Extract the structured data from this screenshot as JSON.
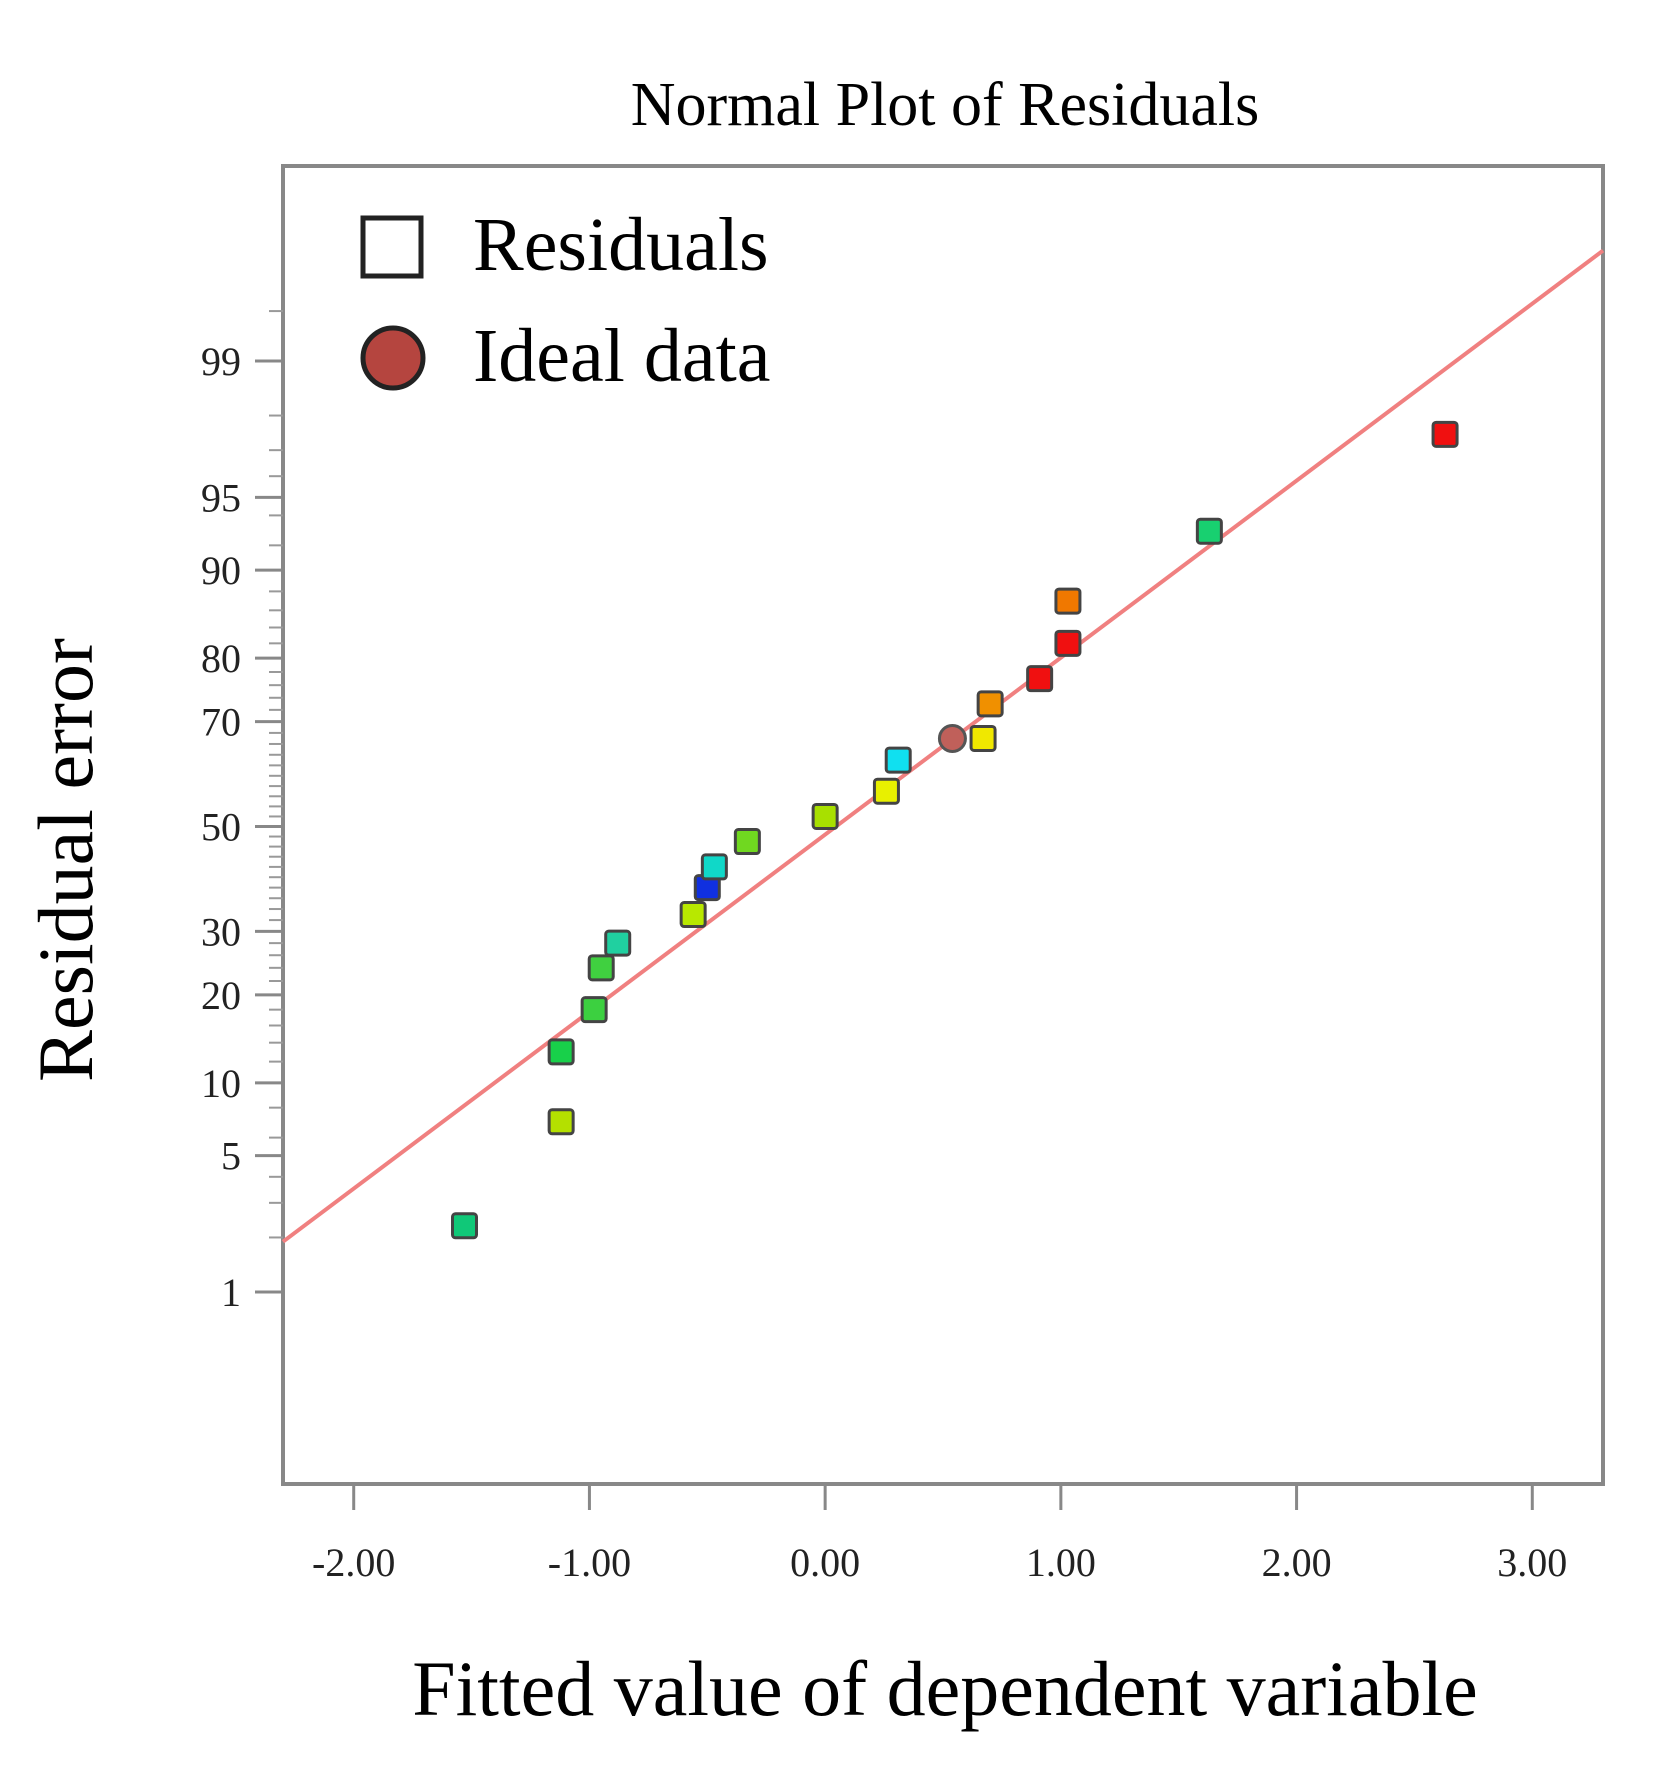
{
  "chart_data": {
    "type": "scatter",
    "title": "Normal Plot of Residuals",
    "xlabel": "Fitted value of dependent variable",
    "ylabel": "Residual error",
    "xlim": [
      -2.3,
      3.3
    ],
    "x_ticks": [
      -2.0,
      -1.0,
      0.0,
      1.0,
      2.0,
      3.0
    ],
    "x_tick_labels": [
      "-2.00",
      "-1.00",
      "0.00",
      "1.00",
      "2.00",
      "3.00"
    ],
    "y_scale": "normal-probability (%)",
    "y_ticks": [
      1,
      5,
      10,
      20,
      30,
      50,
      70,
      80,
      90,
      95,
      99
    ],
    "y_tick_labels": [
      "1",
      "5",
      "10",
      "20",
      "30",
      "50",
      "70",
      "80",
      "90",
      "95",
      "99"
    ],
    "legend": {
      "placement": "top-left",
      "entries": [
        {
          "label": "Residuals",
          "marker": "square-open"
        },
        {
          "label": "Ideal data",
          "marker": "circle",
          "color": "#b5453f"
        }
      ]
    },
    "reference_line": {
      "color": "#f08080",
      "from": {
        "x": -2.3,
        "y_percent": 1.9
      },
      "to": {
        "x": 3.3,
        "y_percent": 99.8
      }
    },
    "series": [
      {
        "name": "Residuals",
        "points": [
          {
            "x": -1.53,
            "y": 2.3,
            "color": "#10c878"
          },
          {
            "x": -1.12,
            "y": 7,
            "color": "#b4e000"
          },
          {
            "x": -1.12,
            "y": 13,
            "color": "#18d04a"
          },
          {
            "x": -0.98,
            "y": 18,
            "color": "#3cd040"
          },
          {
            "x": -0.95,
            "y": 24,
            "color": "#40d040"
          },
          {
            "x": -0.88,
            "y": 28,
            "color": "#20d0a0"
          },
          {
            "x": -0.56,
            "y": 33,
            "color": "#b8e800"
          },
          {
            "x": -0.5,
            "y": 38,
            "color": "#1030e0"
          },
          {
            "x": -0.47,
            "y": 42,
            "color": "#10d8c8"
          },
          {
            "x": -0.33,
            "y": 47,
            "color": "#70d820"
          },
          {
            "x": 0.0,
            "y": 52,
            "color": "#a8e000"
          },
          {
            "x": 0.26,
            "y": 57,
            "color": "#e8f000"
          },
          {
            "x": 0.31,
            "y": 63,
            "color": "#10e0f0"
          },
          {
            "x": 0.67,
            "y": 67,
            "color": "#f0e800"
          },
          {
            "x": 0.7,
            "y": 73,
            "color": "#f09000"
          },
          {
            "x": 0.91,
            "y": 77,
            "color": "#f01010"
          },
          {
            "x": 1.03,
            "y": 82,
            "color": "#f01010"
          },
          {
            "x": 1.03,
            "y": 87,
            "color": "#f07800"
          },
          {
            "x": 1.63,
            "y": 93,
            "color": "#18d070"
          },
          {
            "x": 2.63,
            "y": 97.5,
            "color": "#f01010"
          }
        ]
      },
      {
        "name": "Ideal data",
        "points": [
          {
            "x": 0.54,
            "y": 67,
            "color": "#c0605a"
          }
        ]
      }
    ]
  }
}
